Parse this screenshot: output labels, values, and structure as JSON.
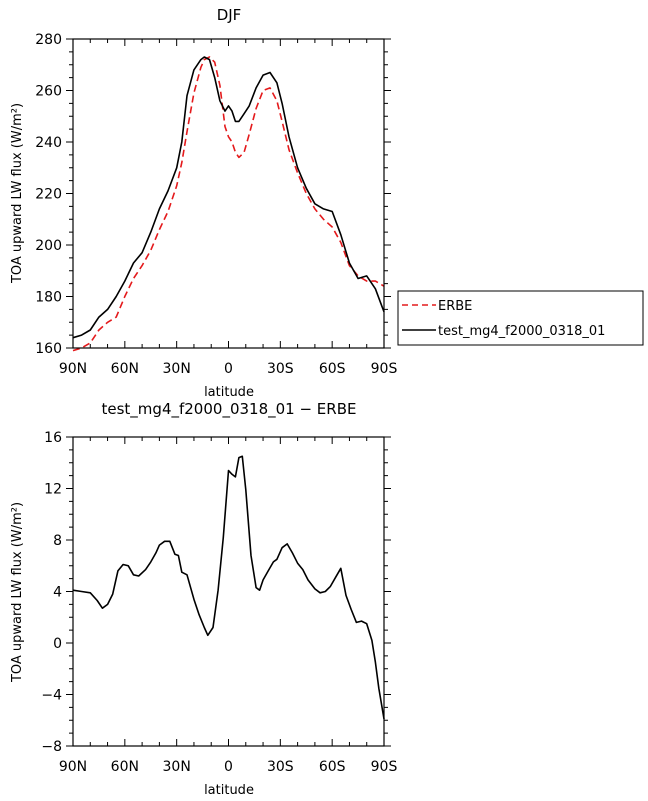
{
  "chart_data": [
    {
      "type": "line",
      "title": "DJF",
      "xlabel": "latitude",
      "ylabel": "TOA upward LW flux (W/m²)",
      "xlim": [
        -90,
        90
      ],
      "ylim": [
        160,
        280
      ],
      "x_ticks": [
        -90,
        -60,
        -30,
        0,
        30,
        60,
        90
      ],
      "x_tick_labels": [
        "90N",
        "60N",
        "30N",
        "0",
        "30S",
        "60S",
        "90S"
      ],
      "y_ticks": [
        160,
        180,
        200,
        220,
        240,
        260,
        280
      ],
      "y_tick_labels": [
        "160",
        "180",
        "200",
        "220",
        "240",
        "260",
        "280"
      ],
      "legend_position": "right",
      "series": [
        {
          "name": "ERBE",
          "color": "#e41a1c",
          "dashed": true,
          "x": [
            -90,
            -85,
            -80,
            -75,
            -70,
            -65,
            -60,
            -55,
            -50,
            -45,
            -40,
            -35,
            -30,
            -27,
            -24,
            -20,
            -16,
            -14,
            -11,
            -8,
            -5,
            -2,
            0,
            2,
            4,
            6,
            9,
            12,
            16,
            20,
            24,
            28,
            31,
            35,
            40,
            45,
            50,
            55,
            60,
            65,
            70,
            75,
            80,
            85,
            90
          ],
          "y": [
            159,
            160,
            162,
            167,
            170,
            172,
            180,
            187,
            192,
            198,
            206,
            213,
            223,
            232,
            244,
            259,
            269,
            272,
            273,
            271,
            262,
            246,
            242,
            240,
            236,
            234,
            236,
            243,
            253,
            260,
            261,
            256,
            248,
            237,
            228,
            220,
            214,
            210,
            207,
            201,
            192,
            188,
            186,
            186,
            184
          ]
        },
        {
          "name": "test_mg4_f2000_0318_01",
          "color": "#000000",
          "dashed": false,
          "x": [
            -90,
            -85,
            -80,
            -75,
            -70,
            -65,
            -60,
            -55,
            -50,
            -45,
            -40,
            -35,
            -30,
            -27,
            -24,
            -20,
            -16,
            -14,
            -11,
            -8,
            -5,
            -2,
            0,
            2,
            4,
            6,
            9,
            12,
            16,
            20,
            24,
            28,
            31,
            35,
            40,
            45,
            50,
            55,
            60,
            65,
            70,
            75,
            80,
            85,
            90
          ],
          "y": [
            164,
            165,
            167,
            172,
            175,
            180,
            186,
            193,
            197,
            205,
            214,
            221,
            230,
            240,
            258,
            268,
            272,
            273,
            272,
            265,
            256,
            252,
            254,
            252,
            248,
            248,
            251,
            254,
            261,
            266,
            267,
            263,
            255,
            242,
            230,
            222,
            216,
            214,
            213,
            204,
            193,
            187,
            188,
            183,
            174
          ]
        }
      ]
    },
    {
      "type": "line",
      "title": "test_mg4_f2000_0318_01 − ERBE",
      "xlabel": "latitude",
      "ylabel": "TOA upward LW flux (W/m²)",
      "xlim": [
        -90,
        90
      ],
      "ylim": [
        -8,
        16
      ],
      "x_ticks": [
        -90,
        -60,
        -30,
        0,
        30,
        60,
        90
      ],
      "x_tick_labels": [
        "90N",
        "60N",
        "30N",
        "0",
        "30S",
        "60S",
        "90S"
      ],
      "y_ticks": [
        -8,
        -4,
        0,
        4,
        8,
        12,
        16
      ],
      "y_tick_labels": [
        "−8",
        "−4",
        "0",
        "4",
        "8",
        "12",
        "16"
      ],
      "series": [
        {
          "color": "#000000",
          "dashed": false,
          "x": [
            -90,
            -85,
            -80,
            -76,
            -73,
            -70,
            -67,
            -64,
            -61,
            -58,
            -55,
            -52,
            -48,
            -45,
            -42,
            -40,
            -37,
            -34,
            -31,
            -29,
            -27,
            -24,
            -20,
            -17,
            -14,
            -12,
            -9,
            -6,
            -3,
            0,
            2,
            4,
            6,
            8,
            10,
            13,
            16,
            18,
            20,
            23,
            26,
            28,
            31,
            34,
            37,
            40,
            43,
            46,
            50,
            53,
            56,
            59,
            62,
            65,
            68,
            71,
            74,
            77,
            80,
            83,
            85,
            87,
            90
          ],
          "y": [
            4.1,
            4.0,
            3.9,
            3.3,
            2.7,
            3.0,
            3.8,
            5.6,
            6.1,
            6.0,
            5.3,
            5.2,
            5.7,
            6.3,
            7.0,
            7.6,
            7.9,
            7.9,
            6.9,
            6.8,
            5.5,
            5.3,
            3.4,
            2.2,
            1.2,
            0.6,
            1.2,
            4.1,
            8.2,
            13.4,
            13.1,
            12.9,
            14.4,
            14.5,
            11.9,
            6.8,
            4.3,
            4.1,
            4.9,
            5.6,
            6.3,
            6.5,
            7.4,
            7.7,
            7.0,
            6.2,
            5.7,
            4.9,
            4.2,
            3.9,
            4.0,
            4.4,
            5.1,
            5.8,
            3.7,
            2.6,
            1.6,
            1.7,
            1.5,
            0.2,
            -1.5,
            -3.5,
            -5.9
          ]
        }
      ]
    }
  ]
}
